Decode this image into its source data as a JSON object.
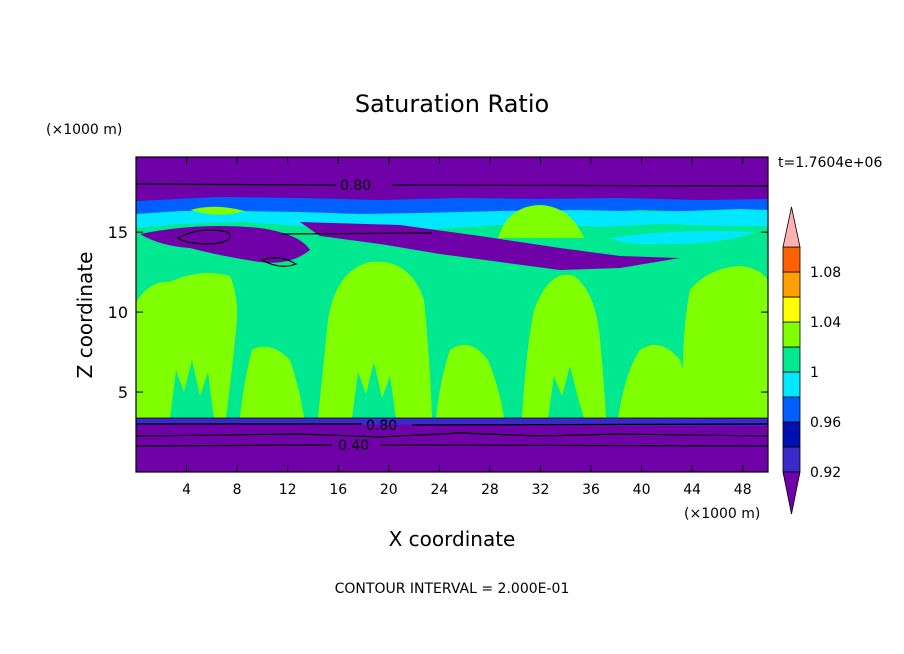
{
  "chart_data": {
    "type": "heatmap",
    "title": "Saturation Ratio",
    "xlabel": "X coordinate",
    "ylabel": "Z coordinate",
    "x_unit": "(×1000 m)",
    "y_unit": "(×1000 m)",
    "xlim": [
      0,
      50
    ],
    "ylim": [
      0,
      19.7
    ],
    "x_ticks": [
      4,
      8,
      12,
      16,
      20,
      24,
      28,
      32,
      36,
      40,
      44,
      48
    ],
    "y_ticks": [
      5,
      10,
      15
    ],
    "time_label": "t=1.7604e+06",
    "footer": "CONTOUR INTERVAL = 2.000E-01",
    "contour_labels": [
      "0.80",
      "0.80",
      "0.40"
    ],
    "colorbar": {
      "levels": [
        0.92,
        0.94,
        0.96,
        0.98,
        1,
        1.02,
        1.04,
        1.06,
        1.08,
        1.1
      ],
      "tick_labels": [
        "0.92",
        "0.96",
        "1",
        "1.04",
        "1.08"
      ],
      "colors": [
        "#7000a8",
        "#3a2ac8",
        "#0010b0",
        "#0060ff",
        "#00e8ff",
        "#00e890",
        "#80ff00",
        "#ffff00",
        "#ffa000",
        "#ff6000",
        "#ff2000",
        "#ffb0b0"
      ]
    }
  }
}
